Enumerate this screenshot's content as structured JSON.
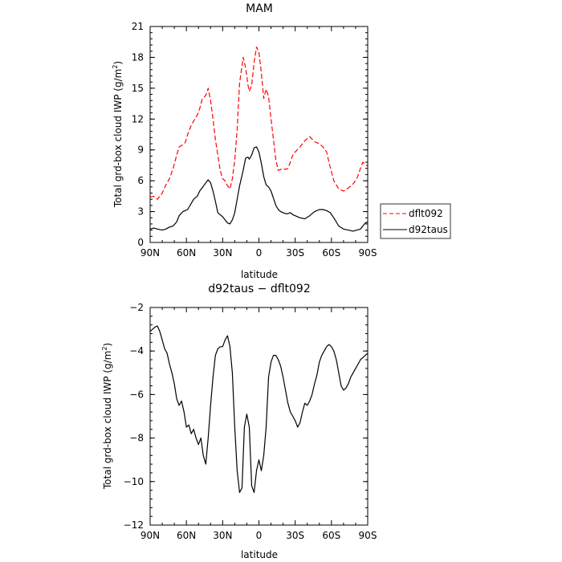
{
  "chart_data": [
    {
      "type": "line",
      "title": "MAM",
      "xlabel": "latitude",
      "ylabel_main": "Total grd-box cloud IWP (g/m",
      "ylabel_sup": "2",
      "ylabel_tail": ")",
      "xlim": [
        -90,
        90
      ],
      "ylim": [
        0,
        21
      ],
      "xticks": [
        -90,
        -60,
        -30,
        0,
        30,
        60,
        90
      ],
      "xtick_labels": [
        "90N",
        "60N",
        "30N",
        "0",
        "30S",
        "60S",
        "90S"
      ],
      "yticks": [
        0,
        3,
        6,
        9,
        12,
        15,
        18,
        21
      ],
      "ytick_labels": [
        "0",
        "3",
        "6",
        "9",
        "12",
        "15",
        "18",
        "21"
      ],
      "legend": [
        "dflt092",
        "d92taus"
      ],
      "series": [
        {
          "name": "dflt092",
          "color": "#ff0000",
          "dash": true,
          "x": [
            -90,
            -87,
            -84,
            -80,
            -77,
            -74,
            -71,
            -68,
            -66,
            -63,
            -61,
            -59,
            -56,
            -54,
            -51,
            -49,
            -47,
            -44,
            -42,
            -40,
            -38,
            -36,
            -34,
            -32,
            -30,
            -28,
            -26,
            -24,
            -22,
            -20,
            -18,
            -16,
            -13,
            -11,
            -9,
            -8,
            -6,
            -4,
            -2,
            0,
            2,
            4,
            6,
            8,
            10,
            12,
            14,
            16,
            18,
            20,
            22,
            24,
            26,
            28,
            30,
            34,
            38,
            42,
            46,
            50,
            53,
            56,
            59,
            62,
            66,
            70,
            74,
            78,
            81,
            84,
            86,
            88,
            90
          ],
          "y": [
            4.4,
            4.5,
            4.2,
            4.8,
            5.6,
            6.2,
            7.2,
            8.5,
            9.3,
            9.5,
            9.7,
            10.5,
            11.4,
            11.8,
            12.4,
            13.0,
            13.9,
            14.3,
            15.0,
            13.8,
            12.0,
            10.0,
            8.5,
            7.0,
            6.2,
            6.0,
            5.5,
            5.2,
            6.2,
            8.0,
            11.0,
            15.5,
            18.0,
            17.0,
            15.3,
            14.7,
            15.3,
            17.5,
            19.0,
            18.5,
            16.5,
            14.0,
            14.9,
            14.2,
            12.0,
            10.0,
            8.0,
            7.0,
            7.1,
            7.2,
            7.1,
            7.2,
            7.8,
            8.5,
            8.8,
            9.3,
            9.9,
            10.3,
            9.8,
            9.6,
            9.3,
            8.8,
            7.3,
            6.0,
            5.2,
            5.0,
            5.3,
            5.7,
            6.2,
            7.2,
            7.8,
            7.6,
            7.4
          ]
        },
        {
          "name": "d92taus",
          "color": "#000000",
          "dash": false,
          "x": [
            -90,
            -87,
            -84,
            -80,
            -77,
            -74,
            -71,
            -68,
            -66,
            -63,
            -61,
            -59,
            -56,
            -54,
            -51,
            -49,
            -47,
            -44,
            -42,
            -40,
            -38,
            -36,
            -34,
            -32,
            -30,
            -28,
            -26,
            -24,
            -22,
            -20,
            -18,
            -16,
            -13,
            -11,
            -9,
            -8,
            -6,
            -4,
            -2,
            0,
            2,
            4,
            6,
            8,
            10,
            12,
            14,
            16,
            18,
            20,
            22,
            24,
            26,
            28,
            30,
            34,
            38,
            42,
            46,
            50,
            53,
            56,
            59,
            62,
            66,
            70,
            74,
            78,
            81,
            84,
            86,
            88,
            90
          ],
          "y": [
            1.3,
            1.4,
            1.3,
            1.2,
            1.3,
            1.5,
            1.6,
            2.0,
            2.6,
            3.0,
            3.1,
            3.2,
            3.8,
            4.2,
            4.5,
            5.0,
            5.3,
            5.8,
            6.1,
            5.8,
            5.0,
            4.0,
            2.9,
            2.7,
            2.5,
            2.2,
            1.9,
            1.8,
            2.2,
            2.9,
            4.2,
            5.5,
            7.0,
            8.2,
            8.3,
            8.1,
            8.5,
            9.2,
            9.3,
            8.8,
            7.7,
            6.4,
            5.6,
            5.4,
            5.0,
            4.3,
            3.6,
            3.2,
            3.0,
            2.9,
            2.8,
            2.8,
            2.9,
            2.7,
            2.6,
            2.4,
            2.3,
            2.6,
            3.0,
            3.2,
            3.2,
            3.1,
            2.9,
            2.4,
            1.6,
            1.3,
            1.2,
            1.1,
            1.2,
            1.3,
            1.6,
            1.9,
            2.0
          ]
        }
      ]
    },
    {
      "type": "line",
      "title": "d92taus − dflt092",
      "xlabel": "latitude",
      "ylabel_main": "Total grd-box cloud IWP (g/m",
      "ylabel_sup": "2",
      "ylabel_tail": ")",
      "xlim": [
        -90,
        90
      ],
      "ylim": [
        -12,
        -2
      ],
      "xticks": [
        -90,
        -60,
        -30,
        0,
        30,
        60,
        90
      ],
      "xtick_labels": [
        "90N",
        "60N",
        "30N",
        "0",
        "30S",
        "60S",
        "90S"
      ],
      "yticks": [
        -12,
        -10,
        -8,
        -6,
        -4,
        -2
      ],
      "ytick_labels": [
        "−12",
        "−10",
        "−8",
        "−6",
        "−4",
        "−2"
      ],
      "series": [
        {
          "color": "#000000",
          "dash": false,
          "x": [
            -90,
            -88,
            -86,
            -84,
            -82,
            -80,
            -78,
            -76,
            -74,
            -72,
            -70,
            -68,
            -66,
            -64,
            -62,
            -60,
            -58,
            -56,
            -54,
            -52,
            -50,
            -48,
            -46,
            -44,
            -42,
            -40,
            -38,
            -36,
            -34,
            -32,
            -30,
            -28,
            -26,
            -24,
            -22,
            -20,
            -18,
            -16,
            -14,
            -12,
            -10,
            -8,
            -6,
            -4,
            -2,
            0,
            2,
            4,
            6,
            8,
            10,
            12,
            14,
            16,
            18,
            20,
            22,
            24,
            26,
            28,
            30,
            32,
            34,
            36,
            38,
            40,
            42,
            44,
            46,
            48,
            50,
            52,
            54,
            56,
            58,
            60,
            62,
            64,
            66,
            68,
            70,
            72,
            74,
            76,
            78,
            80,
            82,
            84,
            86,
            88,
            90
          ],
          "y": [
            -3.1,
            -3.0,
            -2.9,
            -2.85,
            -3.1,
            -3.5,
            -3.9,
            -4.1,
            -4.6,
            -5.0,
            -5.5,
            -6.2,
            -6.5,
            -6.3,
            -6.8,
            -7.5,
            -7.4,
            -7.8,
            -7.6,
            -8.0,
            -8.3,
            -8.0,
            -8.8,
            -9.2,
            -8.0,
            -6.5,
            -5.2,
            -4.2,
            -3.9,
            -3.8,
            -3.8,
            -3.5,
            -3.3,
            -3.8,
            -5.0,
            -7.5,
            -9.5,
            -10.5,
            -10.3,
            -7.5,
            -6.9,
            -7.5,
            -10.2,
            -10.5,
            -9.5,
            -9.0,
            -9.5,
            -8.8,
            -7.5,
            -5.2,
            -4.5,
            -4.2,
            -4.2,
            -4.4,
            -4.7,
            -5.2,
            -5.8,
            -6.4,
            -6.8,
            -7.0,
            -7.2,
            -7.5,
            -7.3,
            -6.8,
            -6.4,
            -6.5,
            -6.3,
            -6.0,
            -5.5,
            -5.1,
            -4.5,
            -4.2,
            -4.0,
            -3.8,
            -3.7,
            -3.8,
            -4.0,
            -4.4,
            -5.0,
            -5.6,
            -5.8,
            -5.7,
            -5.5,
            -5.2,
            -5.0,
            -4.8,
            -4.6,
            -4.4,
            -4.3,
            -4.2,
            -4.1
          ]
        }
      ]
    }
  ]
}
